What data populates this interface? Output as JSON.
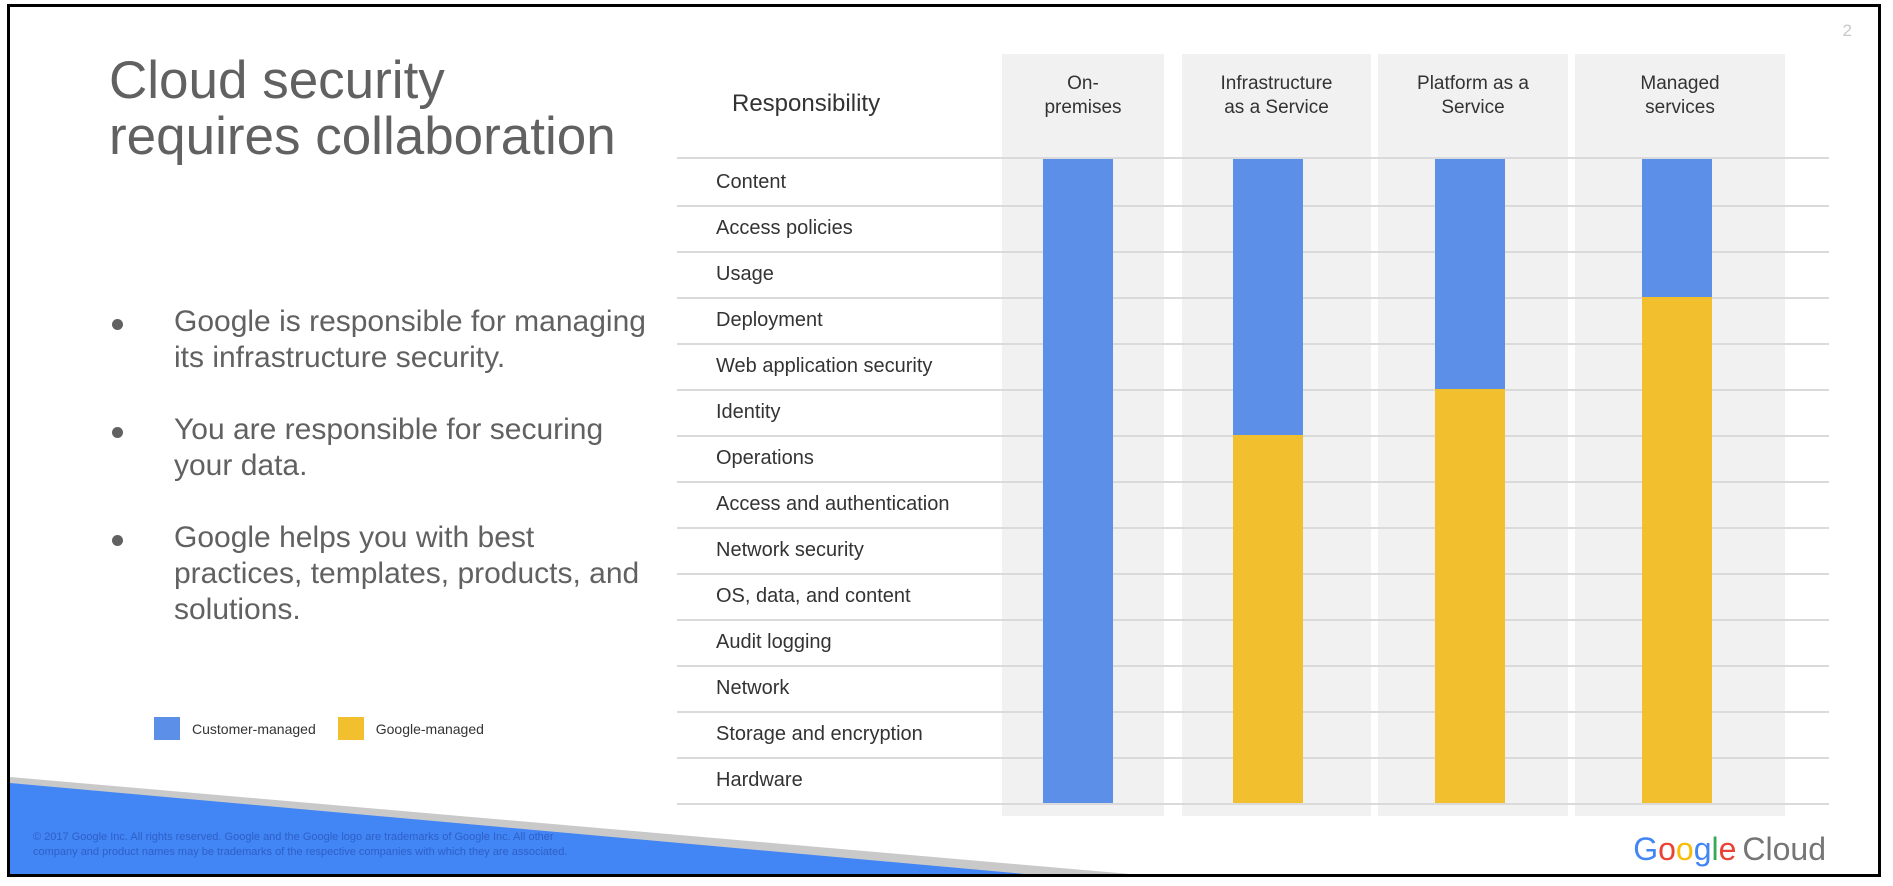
{
  "page_number": "2",
  "title": "Cloud security requires collaboration",
  "bullets": [
    "Google is responsible for managing its infrastructure security.",
    "You are responsible for securing your data.",
    "Google helps you with best practices, templates, products, and solutions."
  ],
  "legend": {
    "customer": "Customer-managed",
    "google": "Google-managed"
  },
  "table": {
    "responsibility_header": "Responsibility",
    "columns": [
      {
        "label": "On-\npremises",
        "customer_rows": 14
      },
      {
        "label": "Infrastructure\nas a Service",
        "customer_rows": 6
      },
      {
        "label": "Platform as a\nService",
        "customer_rows": 5
      },
      {
        "label": "Managed\nservices",
        "customer_rows": 3
      }
    ],
    "rows": [
      "Content",
      "Access policies",
      "Usage",
      "Deployment",
      "Web application security",
      "Identity",
      "Operations",
      "Access and authentication",
      "Network security",
      "OS, data, and content",
      "Audit logging",
      "Network",
      "Storage and encryption",
      "Hardware"
    ]
  },
  "colors": {
    "customer": "#5b8fe8",
    "google": "#f2bf2f",
    "band": "#4285f4"
  },
  "copyright": "© 2017 Google Inc. All rights reserved. Google and the Google logo are trademarks of Google Inc. All other company and product names may be trademarks of the respective companies with which they are associated.",
  "logo": {
    "google": "Google",
    "cloud": "Cloud"
  }
}
